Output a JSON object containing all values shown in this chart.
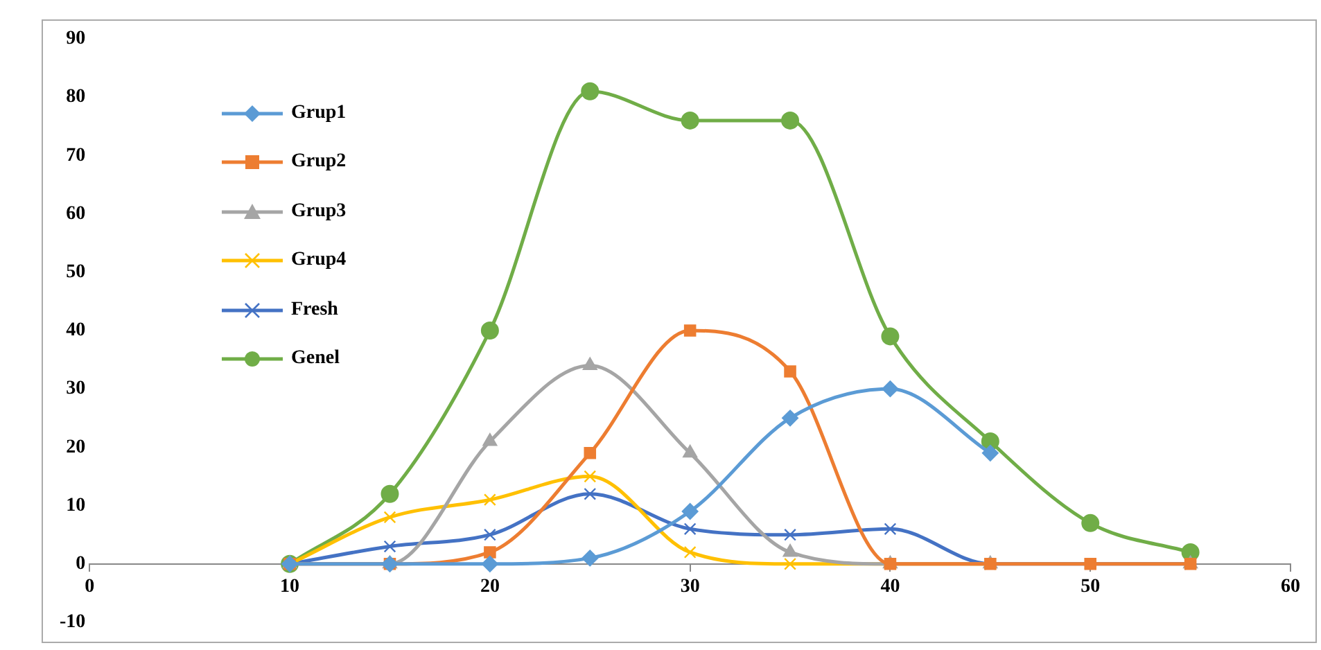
{
  "chart_data": {
    "type": "line",
    "x": [
      10,
      15,
      20,
      25,
      30,
      35,
      40,
      45,
      50,
      55
    ],
    "series": [
      {
        "name": "Grup1",
        "color": "#5b9bd5",
        "marker": "diamond",
        "values": [
          0,
          0,
          0,
          1,
          9,
          25,
          30,
          19,
          null,
          null
        ]
      },
      {
        "name": "Grup2",
        "color": "#ed7d31",
        "marker": "square",
        "values": [
          0,
          0,
          2,
          19,
          40,
          33,
          0,
          0,
          0,
          0
        ]
      },
      {
        "name": "Grup3",
        "color": "#a5a5a5",
        "marker": "triangle",
        "values": [
          0,
          0,
          21,
          34,
          19,
          2,
          0,
          0,
          null,
          0
        ]
      },
      {
        "name": "Grup4",
        "color": "#ffc000",
        "marker": "cross",
        "values": [
          0,
          8,
          11,
          15,
          2,
          0,
          0,
          0,
          null,
          null
        ]
      },
      {
        "name": "Fresh",
        "color": "#4472c4",
        "marker": "cross",
        "values": [
          0,
          3,
          5,
          12,
          6,
          5,
          6,
          0,
          0,
          0
        ]
      },
      {
        "name": "Genel",
        "color": "#70ad47",
        "marker": "circle",
        "values": [
          0,
          12,
          40,
          81,
          76,
          76,
          39,
          21,
          7,
          2
        ]
      }
    ],
    "xlim": [
      0,
      60
    ],
    "xticks": [
      0,
      10,
      20,
      30,
      40,
      50,
      60
    ],
    "ylim": [
      -10,
      90
    ],
    "yticks": [
      -10,
      0,
      10,
      20,
      30,
      40,
      50,
      60,
      70,
      80,
      90
    ],
    "grid": false,
    "legend": "top left"
  }
}
